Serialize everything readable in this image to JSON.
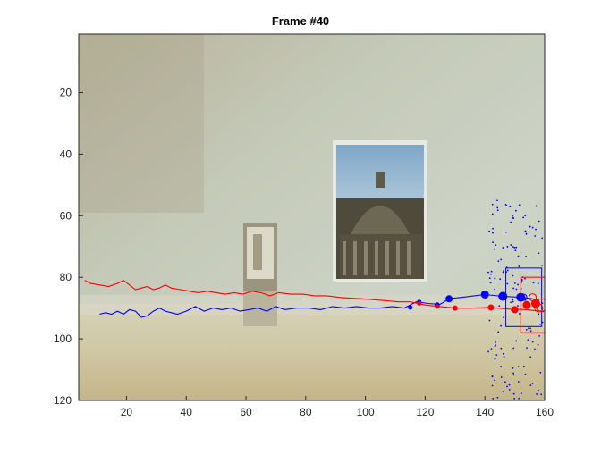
{
  "figure": {
    "title": "Frame #40"
  },
  "chart_data": {
    "type": "scatter",
    "title": "Frame #40",
    "xlabel": "",
    "ylabel": "",
    "xlim": [
      4,
      160
    ],
    "ylim": [
      120,
      1
    ],
    "y_reversed": true,
    "grid": false,
    "x_ticks": [
      20,
      40,
      60,
      80,
      100,
      120,
      140,
      160
    ],
    "y_ticks": [
      20,
      40,
      60,
      80,
      100,
      120
    ],
    "background": "video frame: beige wall, poster of a domed building, small box on a table",
    "colors": {
      "blue": "#0000ff",
      "red": "#ff0000",
      "axis": "#262626"
    },
    "series": [
      {
        "color": "#0000ff",
        "kind": "trajectory",
        "points": [
          [
            11,
            92
          ],
          [
            13,
            91.5
          ],
          [
            15,
            92
          ],
          [
            17,
            91
          ],
          [
            19,
            92
          ],
          [
            21,
            90.5
          ],
          [
            23,
            91
          ],
          [
            25,
            93
          ],
          [
            27,
            92.5
          ],
          [
            29,
            91
          ],
          [
            31,
            90
          ],
          [
            33,
            91
          ],
          [
            35,
            91.5
          ],
          [
            37,
            92
          ],
          [
            40,
            91
          ],
          [
            43,
            89.5
          ],
          [
            46,
            91
          ],
          [
            49,
            90
          ],
          [
            52,
            90.5
          ],
          [
            55,
            90
          ],
          [
            58,
            91
          ],
          [
            61,
            90.5
          ],
          [
            64,
            90
          ],
          [
            67,
            91
          ],
          [
            70,
            89.5
          ],
          [
            73,
            90.5
          ],
          [
            77,
            90
          ],
          [
            81,
            90
          ],
          [
            85,
            90.5
          ],
          [
            89,
            89.5
          ],
          [
            93,
            90
          ],
          [
            97,
            89.5
          ],
          [
            101,
            90
          ],
          [
            105,
            90
          ],
          [
            109,
            89.5
          ],
          [
            113,
            90
          ],
          [
            117,
            88
          ],
          [
            121,
            88.5
          ],
          [
            125,
            88.8
          ],
          [
            128,
            87
          ],
          [
            134,
            86.3
          ],
          [
            140,
            85.6
          ],
          [
            146,
            86.2
          ],
          [
            152,
            86.5
          ],
          [
            156,
            87
          ]
        ]
      },
      {
        "color": "#0000ff",
        "kind": "markers",
        "points": [
          [
            115,
            89.8,
            2.5
          ],
          [
            118,
            88,
            2.5
          ],
          [
            124,
            89,
            3
          ],
          [
            128,
            87,
            4
          ],
          [
            140,
            85.6,
            4.5
          ],
          [
            146,
            86.2,
            5
          ],
          [
            152,
            86.5,
            5
          ]
        ]
      },
      {
        "color": "#ff0000",
        "kind": "trajectory",
        "points": [
          [
            6,
            81
          ],
          [
            8,
            82
          ],
          [
            11,
            82.5
          ],
          [
            14,
            83
          ],
          [
            17,
            82
          ],
          [
            19,
            81
          ],
          [
            21,
            82.5
          ],
          [
            23,
            84
          ],
          [
            25,
            83.5
          ],
          [
            27,
            83
          ],
          [
            29,
            84
          ],
          [
            31,
            83.5
          ],
          [
            33,
            82.5
          ],
          [
            35,
            83.5
          ],
          [
            38,
            84
          ],
          [
            41,
            84.5
          ],
          [
            44,
            85
          ],
          [
            47,
            84.5
          ],
          [
            50,
            85
          ],
          [
            53,
            85.5
          ],
          [
            56,
            85
          ],
          [
            59,
            85.5
          ],
          [
            62,
            84.5
          ],
          [
            65,
            85
          ],
          [
            68,
            86
          ],
          [
            71,
            85
          ],
          [
            75,
            85.5
          ],
          [
            79,
            85.5
          ],
          [
            83,
            86
          ],
          [
            87,
            86
          ],
          [
            91,
            86.5
          ],
          [
            95,
            86.8
          ],
          [
            99,
            87
          ],
          [
            103,
            87.3
          ],
          [
            107,
            87.6
          ],
          [
            111,
            88
          ],
          [
            115,
            88
          ],
          [
            120,
            89
          ],
          [
            125,
            89.5
          ],
          [
            130,
            90
          ],
          [
            136,
            90
          ],
          [
            142,
            89.8
          ],
          [
            148,
            90.3
          ],
          [
            154,
            90.5
          ],
          [
            158,
            91
          ]
        ]
      },
      {
        "color": "#ff0000",
        "kind": "markers",
        "points": [
          [
            118,
            88.5,
            2.5
          ],
          [
            124,
            89.5,
            2.5
          ],
          [
            130,
            90,
            3
          ],
          [
            142,
            89.8,
            3.5
          ],
          [
            150,
            90.5,
            4
          ],
          [
            154,
            89,
            4.5
          ],
          [
            157,
            88.5,
            5
          ]
        ]
      }
    ],
    "boxes": [
      {
        "color": "#0000ff",
        "x0": 147,
        "x1": 159,
        "y0": 77,
        "y1": 96
      },
      {
        "color": "#ff0000",
        "x0": 152,
        "x1": 160,
        "y0": 80,
        "y1": 98
      }
    ],
    "circles": [
      {
        "color": "#ff0000",
        "x": 156,
        "y": 86.5,
        "r": 4
      },
      {
        "color": "#ff0000",
        "x": 159,
        "y": 89,
        "r": 7
      },
      {
        "color": "#ff0000",
        "x": 158,
        "y": 90,
        "r": 4.5
      },
      {
        "color": "#0000ff",
        "x": 153,
        "y": 86.5,
        "r": 3.5
      }
    ]
  }
}
